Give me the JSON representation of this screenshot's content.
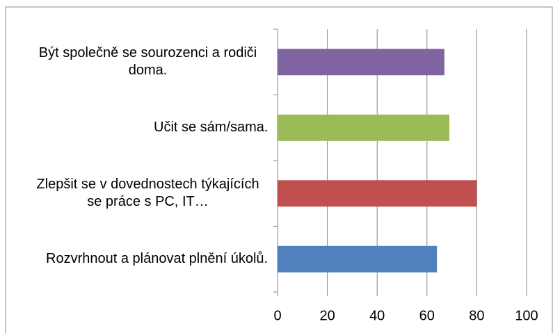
{
  "chart_data": {
    "type": "bar",
    "orientation": "horizontal",
    "categories": [
      "Rozvrhnout a plánovat plnění úkolů.",
      "Zlepšit se v dovednostech týkajících se práce s PC, IT…",
      "Učit se sám/sama.",
      "Být společně se sourozenci a rodiči doma."
    ],
    "values": [
      64,
      80,
      69,
      67
    ],
    "colors": [
      "#4f81bd",
      "#c0504d",
      "#9bbb59",
      "#8064a2"
    ],
    "xlim": [
      0,
      100
    ],
    "xticks": [
      0,
      20,
      40,
      60,
      80,
      100
    ],
    "grid": true
  }
}
